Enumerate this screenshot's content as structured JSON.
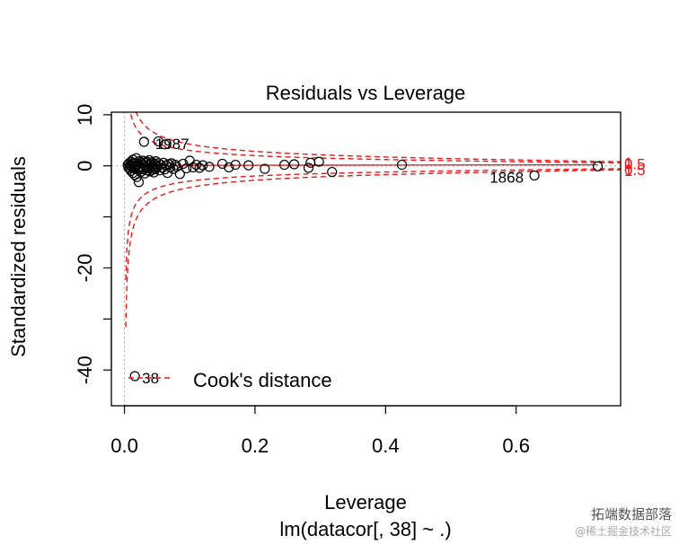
{
  "chart_data": {
    "type": "scatter",
    "title": "Residuals vs Leverage",
    "xlabel": "Leverage",
    "sublabel": "lm(datacor[, 38] ~ .)",
    "ylabel": "Standardized residuals",
    "xlim": [
      -0.02,
      0.76
    ],
    "ylim": [
      -47,
      10.5
    ],
    "xticks": [
      0.0,
      0.2,
      0.4,
      0.6
    ],
    "xtick_labels": [
      "0.0",
      "0.2",
      "0.4",
      "0.6"
    ],
    "yticks": [
      10,
      0,
      -20,
      -40
    ],
    "ytick_labels": [
      "10",
      "0",
      "-20",
      "-40"
    ],
    "cook_levels": [
      {
        "level": 0.5,
        "label": "0.5"
      },
      {
        "level": 1,
        "label": "1"
      }
    ],
    "legend": "Cook's distance",
    "point_labels": [
      {
        "text": "1987",
        "x": 0.036,
        "y": 4.7
      },
      {
        "text": "1868",
        "x": 0.628,
        "y": -1.9
      },
      {
        "text": "38",
        "x": 0.016,
        "y": -41.2
      }
    ],
    "points": [
      [
        0.005,
        0.2
      ],
      [
        0.006,
        -0.3
      ],
      [
        0.007,
        0.5
      ],
      [
        0.008,
        -0.6
      ],
      [
        0.009,
        0.1
      ],
      [
        0.01,
        -1.0
      ],
      [
        0.01,
        0.8
      ],
      [
        0.011,
        -0.2
      ],
      [
        0.012,
        0.4
      ],
      [
        0.013,
        -1.4
      ],
      [
        0.013,
        1.2
      ],
      [
        0.014,
        -0.5
      ],
      [
        0.015,
        0.0
      ],
      [
        0.016,
        -1.8
      ],
      [
        0.016,
        0.6
      ],
      [
        0.017,
        -0.3
      ],
      [
        0.018,
        1.5
      ],
      [
        0.019,
        -2.2
      ],
      [
        0.02,
        0.3
      ],
      [
        0.021,
        -0.8
      ],
      [
        0.022,
        -3.2
      ],
      [
        0.023,
        0.9
      ],
      [
        0.024,
        -0.1
      ],
      [
        0.025,
        -1.2
      ],
      [
        0.026,
        0.5
      ],
      [
        0.027,
        -0.4
      ],
      [
        0.028,
        1.0
      ],
      [
        0.029,
        -0.7
      ],
      [
        0.03,
        0.2
      ],
      [
        0.031,
        -1.5
      ],
      [
        0.032,
        0.6
      ],
      [
        0.033,
        -0.2
      ],
      [
        0.034,
        0.8
      ],
      [
        0.035,
        -0.9
      ],
      [
        0.036,
        0.1
      ],
      [
        0.037,
        -0.5
      ],
      [
        0.038,
        1.1
      ],
      [
        0.039,
        -1.1
      ],
      [
        0.04,
        0.3
      ],
      [
        0.041,
        -0.3
      ],
      [
        0.042,
        0.7
      ],
      [
        0.043,
        -0.8
      ],
      [
        0.044,
        0.0
      ],
      [
        0.045,
        -1.3
      ],
      [
        0.046,
        0.4
      ],
      [
        0.047,
        -0.6
      ],
      [
        0.048,
        0.9
      ],
      [
        0.05,
        -0.2
      ],
      [
        0.052,
        0.5
      ],
      [
        0.054,
        -0.9
      ],
      [
        0.056,
        0.2
      ],
      [
        0.058,
        -0.4
      ],
      [
        0.06,
        0.6
      ],
      [
        0.062,
        -0.7
      ],
      [
        0.064,
        0.1
      ],
      [
        0.066,
        -1.4
      ],
      [
        0.068,
        0.3
      ],
      [
        0.07,
        -0.3
      ],
      [
        0.072,
        0.5
      ],
      [
        0.075,
        -0.6
      ],
      [
        0.078,
        0.2
      ],
      [
        0.08,
        -0.2
      ],
      [
        0.085,
        -1.6
      ],
      [
        0.09,
        0.4
      ],
      [
        0.095,
        -0.5
      ],
      [
        0.1,
        1.0
      ],
      [
        0.105,
        -0.3
      ],
      [
        0.11,
        0.2
      ],
      [
        0.115,
        -0.4
      ],
      [
        0.12,
        0.1
      ],
      [
        0.13,
        -0.2
      ],
      [
        0.15,
        0.4
      ],
      [
        0.16,
        -0.3
      ],
      [
        0.17,
        0.2
      ],
      [
        0.19,
        0.1
      ],
      [
        0.215,
        -0.6
      ],
      [
        0.245,
        0.2
      ],
      [
        0.26,
        0.3
      ],
      [
        0.282,
        -0.4
      ],
      [
        0.285,
        0.6
      ],
      [
        0.298,
        0.8
      ],
      [
        0.318,
        -1.2
      ],
      [
        0.425,
        0.2
      ],
      [
        0.628,
        -1.9
      ],
      [
        0.725,
        -0.1
      ],
      [
        0.03,
        4.7
      ],
      [
        0.052,
        4.8
      ],
      [
        0.062,
        4.2
      ],
      [
        0.016,
        -41.2
      ]
    ]
  },
  "watermark": {
    "line1": "拓端数据部落",
    "line2": "@稀土掘金技术社区"
  }
}
